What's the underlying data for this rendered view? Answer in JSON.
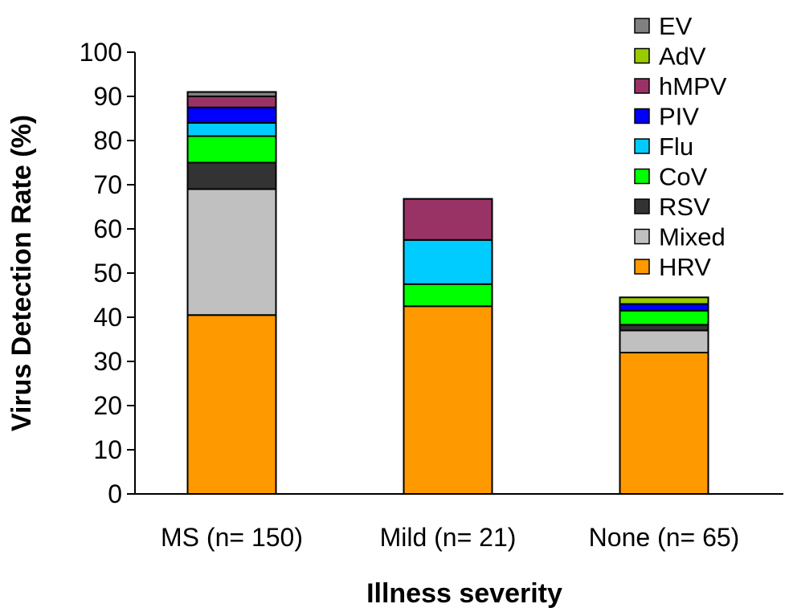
{
  "chart_data": {
    "type": "bar",
    "stacked": true,
    "categories": [
      "MS (n= 150)",
      "Mild (n= 21)",
      "None (n= 65)"
    ],
    "series": [
      {
        "name": "HRV",
        "color": "#FF9900",
        "values": [
          40.5,
          42.5,
          32
        ]
      },
      {
        "name": "Mixed",
        "color": "#C0C0C0",
        "values": [
          28.5,
          0,
          5
        ]
      },
      {
        "name": "RSV",
        "color": "#333333",
        "values": [
          6,
          0,
          1.3
        ]
      },
      {
        "name": "CoV",
        "color": "#00FF00",
        "values": [
          6,
          5,
          3.2
        ]
      },
      {
        "name": "Flu",
        "color": "#00CCFF",
        "values": [
          3,
          10,
          0
        ]
      },
      {
        "name": "PIV",
        "color": "#0000FF",
        "values": [
          3.5,
          0,
          1.5
        ]
      },
      {
        "name": "hMPV",
        "color": "#993366",
        "values": [
          2.5,
          9.3,
          0
        ]
      },
      {
        "name": "AdV",
        "color": "#99CC00",
        "values": [
          0,
          0,
          1.5
        ]
      },
      {
        "name": "EV",
        "color": "#808080",
        "values": [
          1,
          0,
          0
        ]
      }
    ],
    "legend_order": [
      "EV",
      "AdV",
      "hMPV",
      "PIV",
      "Flu",
      "CoV",
      "RSV",
      "Mixed",
      "HRV"
    ],
    "xlabel": "Illness severity",
    "ylabel": "Virus Detection Rate (%)",
    "ylim": [
      0,
      100
    ],
    "yticks": [
      "0",
      "10",
      "20",
      "30",
      "40",
      "50",
      "60",
      "70",
      "80",
      "90",
      "100"
    ],
    "grid": false,
    "legend_position": "top-right"
  }
}
